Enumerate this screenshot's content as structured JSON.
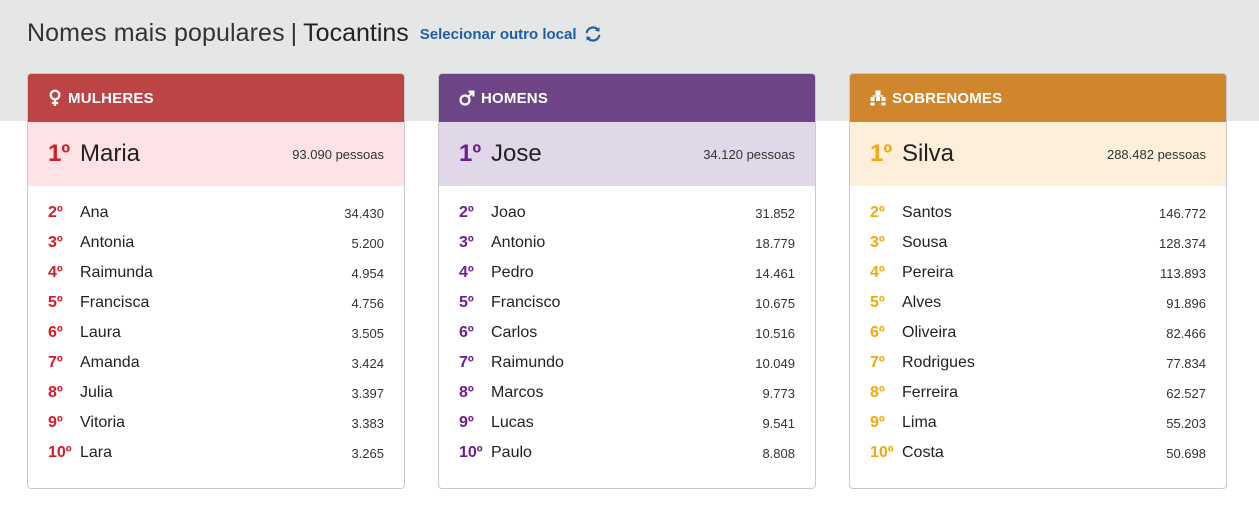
{
  "header": {
    "title": "Nomes mais populares",
    "separator": "|",
    "place": "Tocantins",
    "change_link": "Selecionar outro local"
  },
  "colors": {
    "women": "#bd4444",
    "men": "#6d4586",
    "surnames": "#cf862c",
    "women_rank": "#d41c2a",
    "men_rank": "#6e1d97",
    "surnames_rank": "#f2a90f",
    "link": "#1f5fa8"
  },
  "cards": [
    {
      "title": "MULHERES",
      "icon": "female-symbol-icon",
      "top": {
        "rank": "1º",
        "name": "Maria",
        "count": "93.090 pessoas"
      },
      "rows": [
        {
          "rank": "2º",
          "name": "Ana",
          "count": "34.430"
        },
        {
          "rank": "3º",
          "name": "Antonia",
          "count": "5.200"
        },
        {
          "rank": "4º",
          "name": "Raimunda",
          "count": "4.954"
        },
        {
          "rank": "5º",
          "name": "Francisca",
          "count": "4.756"
        },
        {
          "rank": "6º",
          "name": "Laura",
          "count": "3.505"
        },
        {
          "rank": "7º",
          "name": "Amanda",
          "count": "3.424"
        },
        {
          "rank": "8º",
          "name": "Julia",
          "count": "3.397"
        },
        {
          "rank": "9º",
          "name": "Vitoria",
          "count": "3.383"
        },
        {
          "rank": "10º",
          "name": "Lara",
          "count": "3.265"
        }
      ]
    },
    {
      "title": "HOMENS",
      "icon": "male-symbol-icon",
      "top": {
        "rank": "1º",
        "name": "Jose",
        "count": "34.120 pessoas"
      },
      "rows": [
        {
          "rank": "2º",
          "name": "Joao",
          "count": "31.852"
        },
        {
          "rank": "3º",
          "name": "Antonio",
          "count": "18.779"
        },
        {
          "rank": "4º",
          "name": "Pedro",
          "count": "14.461"
        },
        {
          "rank": "5º",
          "name": "Francisco",
          "count": "10.675"
        },
        {
          "rank": "6º",
          "name": "Carlos",
          "count": "10.516"
        },
        {
          "rank": "7º",
          "name": "Raimundo",
          "count": "10.049"
        },
        {
          "rank": "8º",
          "name": "Marcos",
          "count": "9.773"
        },
        {
          "rank": "9º",
          "name": "Lucas",
          "count": "9.541"
        },
        {
          "rank": "10º",
          "name": "Paulo",
          "count": "8.808"
        }
      ]
    },
    {
      "title": "SOBRENOMES",
      "icon": "family-tree-icon",
      "top": {
        "rank": "1º",
        "name": "Silva",
        "count": "288.482 pessoas"
      },
      "rows": [
        {
          "rank": "2º",
          "name": "Santos",
          "count": "146.772"
        },
        {
          "rank": "3º",
          "name": "Sousa",
          "count": "128.374"
        },
        {
          "rank": "4º",
          "name": "Pereira",
          "count": "113.893"
        },
        {
          "rank": "5º",
          "name": "Alves",
          "count": "91.896"
        },
        {
          "rank": "6º",
          "name": "Oliveira",
          "count": "82.466"
        },
        {
          "rank": "7º",
          "name": "Rodrigues",
          "count": "77.834"
        },
        {
          "rank": "8º",
          "name": "Ferreira",
          "count": "62.527"
        },
        {
          "rank": "9º",
          "name": "Lima",
          "count": "55.203"
        },
        {
          "rank": "10º",
          "name": "Costa",
          "count": "50.698"
        }
      ]
    }
  ]
}
